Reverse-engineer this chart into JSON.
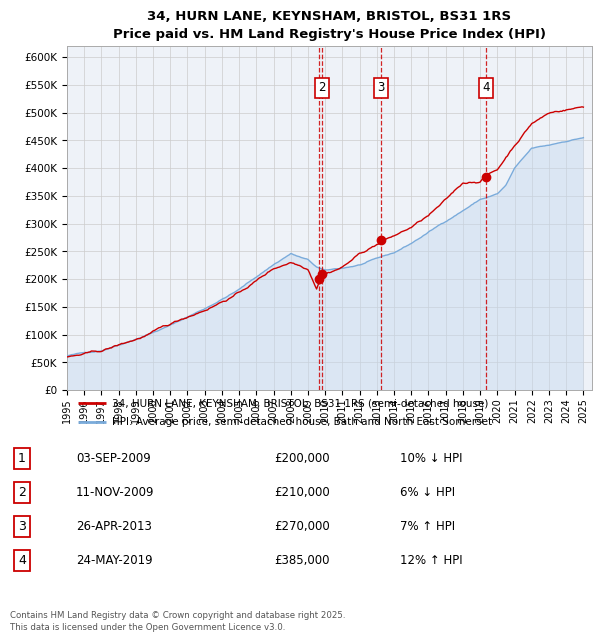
{
  "title": "34, HURN LANE, KEYNSHAM, BRISTOL, BS31 1RS",
  "subtitle": "Price paid vs. HM Land Registry's House Price Index (HPI)",
  "ylim": [
    0,
    620000
  ],
  "yticks": [
    0,
    50000,
    100000,
    150000,
    200000,
    250000,
    300000,
    350000,
    400000,
    450000,
    500000,
    550000,
    600000
  ],
  "ytick_labels": [
    "£0",
    "£50K",
    "£100K",
    "£150K",
    "£200K",
    "£250K",
    "£300K",
    "£350K",
    "£400K",
    "£450K",
    "£500K",
    "£550K",
    "£600K"
  ],
  "background_color": "#ffffff",
  "plot_bg_color": "#eef2f8",
  "grid_color": "#cccccc",
  "sale_color": "#cc0000",
  "hpi_color": "#7aabdb",
  "hpi_fill_color": "#c5d8ee",
  "legend1": "34, HURN LANE, KEYNSHAM, BRISTOL, BS31 1RS (semi-detached house)",
  "legend2": "HPI: Average price, semi-detached house, Bath and North East Somerset",
  "footer": "Contains HM Land Registry data © Crown copyright and database right 2025.\nThis data is licensed under the Open Government Licence v3.0.",
  "markers": [
    {
      "t": 2009.667,
      "price": 200000,
      "label": "1",
      "show_box": false
    },
    {
      "t": 2009.833,
      "price": 210000,
      "label": "2",
      "show_box": true
    },
    {
      "t": 2013.25,
      "price": 270000,
      "label": "3",
      "show_box": true
    },
    {
      "t": 2019.333,
      "price": 385000,
      "label": "4",
      "show_box": true
    }
  ],
  "table_rows": [
    {
      "num": "1",
      "date": "03-SEP-2009",
      "price": "£200,000",
      "hpi": "10% ↓ HPI"
    },
    {
      "num": "2",
      "date": "11-NOV-2009",
      "price": "£210,000",
      "hpi": "6% ↓ HPI"
    },
    {
      "num": "3",
      "date": "26-APR-2013",
      "price": "£270,000",
      "hpi": "7% ↑ HPI"
    },
    {
      "num": "4",
      "date": "24-MAY-2019",
      "price": "£385,000",
      "hpi": "12% ↑ HPI"
    }
  ]
}
